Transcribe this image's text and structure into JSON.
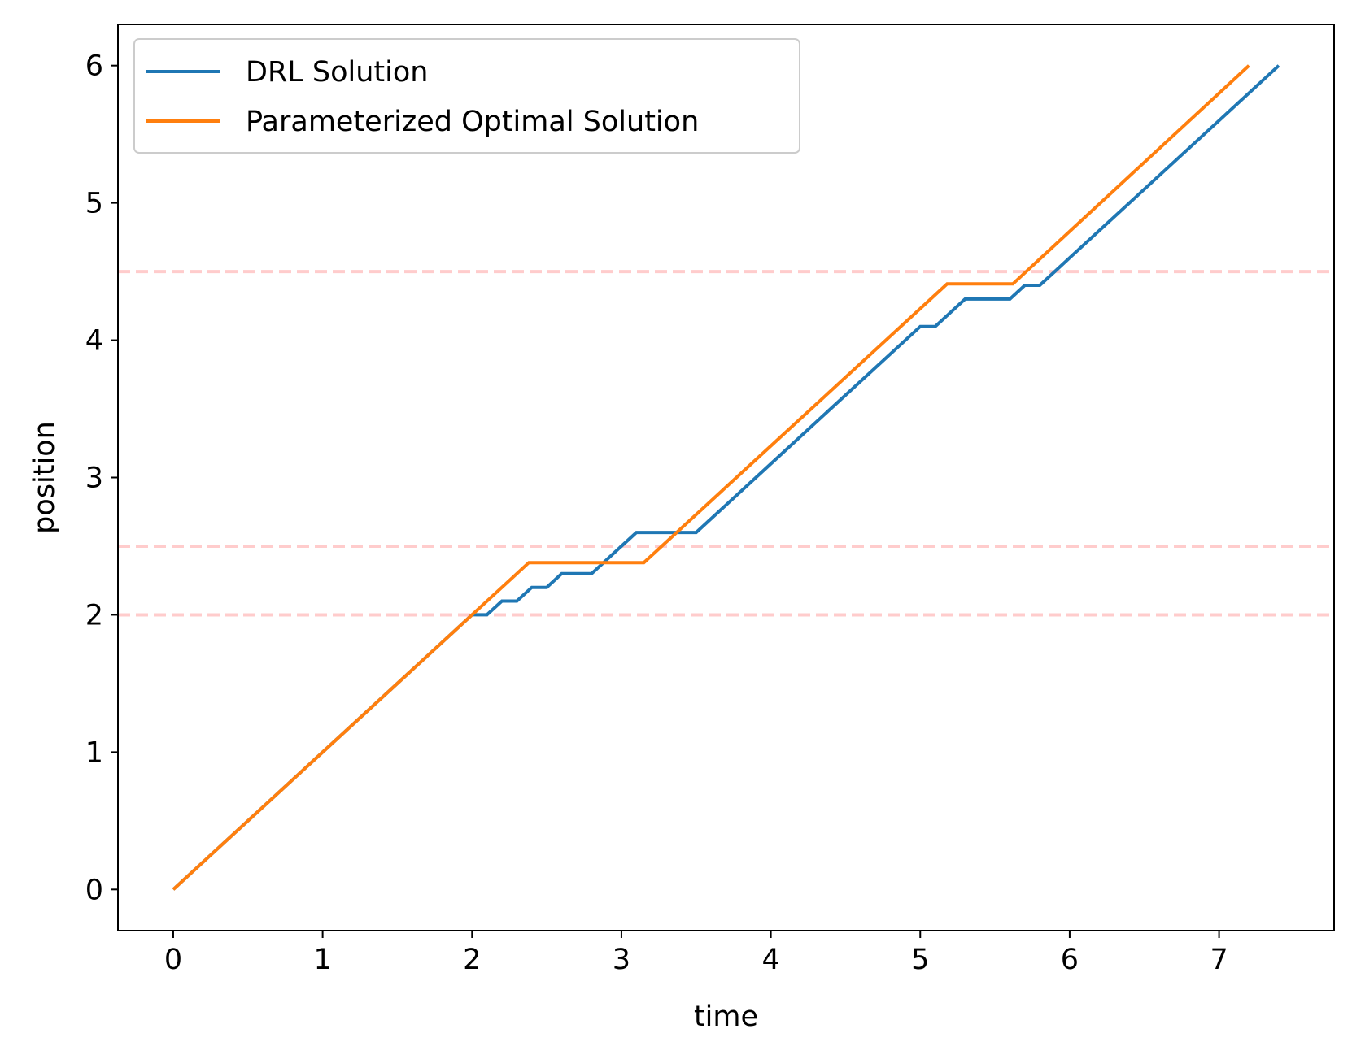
{
  "chart_data": {
    "type": "line",
    "title": "",
    "xlabel": "time",
    "ylabel": "position",
    "xlim": [
      -0.37,
      7.77
    ],
    "ylim": [
      -0.3,
      6.3
    ],
    "xticks": [
      "0",
      "1",
      "2",
      "3",
      "4",
      "5",
      "6",
      "7"
    ],
    "yticks": [
      "0",
      "1",
      "2",
      "3",
      "4",
      "5",
      "6"
    ],
    "grid": false,
    "legend": "upper-left",
    "reference_lines": {
      "style": "dashed",
      "color": "#ffcccc",
      "y": [
        2.0,
        2.5,
        4.5
      ]
    },
    "series": [
      {
        "name": "DRL Solution",
        "color": "#1f77b4",
        "x": [
          0,
          2.0,
          2.1,
          2.2,
          2.3,
          2.4,
          2.5,
          2.6,
          2.7,
          2.8,
          2.9,
          3.0,
          3.1,
          3.2,
          3.3,
          3.4,
          3.5,
          4.0,
          4.5,
          5.0,
          5.1,
          5.2,
          5.3,
          5.4,
          5.5,
          5.6,
          5.7,
          5.8,
          5.9,
          6.0,
          6.5,
          7.0,
          7.4
        ],
        "y": [
          0,
          2.0,
          2.0,
          2.1,
          2.1,
          2.2,
          2.2,
          2.3,
          2.3,
          2.3,
          2.4,
          2.5,
          2.6,
          2.6,
          2.6,
          2.6,
          2.6,
          3.1,
          3.6,
          4.1,
          4.1,
          4.2,
          4.3,
          4.3,
          4.3,
          4.3,
          4.4,
          4.4,
          4.5,
          4.6,
          5.1,
          5.6,
          6.0
        ]
      },
      {
        "name": "Parameterized Optimal Solution",
        "color": "#ff7f0e",
        "x": [
          0,
          2.38,
          3.15,
          5.18,
          5.62,
          7.2
        ],
        "y": [
          0,
          2.38,
          2.38,
          4.41,
          4.41,
          6.0
        ]
      }
    ]
  }
}
